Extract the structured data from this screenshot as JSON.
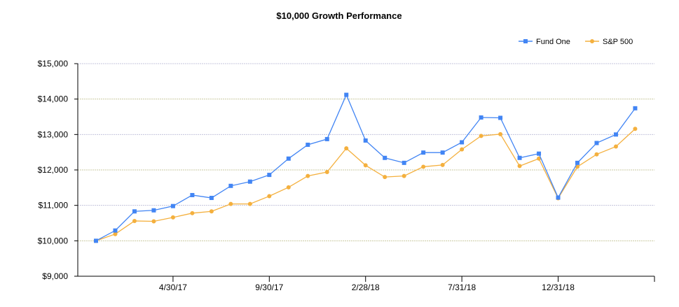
{
  "chart_data": {
    "type": "line",
    "title": "$10,000 Growth Performance",
    "xlabel": "",
    "ylabel": "",
    "ylim": [
      9000,
      15000
    ],
    "yticks": [
      9000,
      10000,
      11000,
      12000,
      13000,
      14000,
      15000
    ],
    "ytick_labels": [
      "$9,000",
      "$10,000",
      "$11,000",
      "$12,000",
      "$13,000",
      "$14,000",
      "$15,000"
    ],
    "xtick_labels": [
      {
        "index": 4,
        "label": "4/30/17"
      },
      {
        "index": 9,
        "label": "9/30/17"
      },
      {
        "index": 14,
        "label": "2/28/18"
      },
      {
        "index": 19,
        "label": "7/31/18"
      },
      {
        "index": 24,
        "label": "12/31/18"
      }
    ],
    "legend_position": "top-right",
    "grid": true,
    "series": [
      {
        "name": "Fund One",
        "color": "#4285f4",
        "marker": "square",
        "values": [
          10000,
          10290,
          10830,
          10860,
          10980,
          11290,
          11210,
          11550,
          11670,
          11860,
          12320,
          12710,
          12870,
          14120,
          12830,
          12340,
          12200,
          12490,
          12490,
          12780,
          13480,
          13470,
          12340,
          12460,
          11220,
          12200,
          12760,
          13000,
          13740
        ]
      },
      {
        "name": "S&P 500",
        "color": "#f4b03e",
        "marker": "circle",
        "values": [
          10000,
          10190,
          10560,
          10550,
          10660,
          10780,
          10830,
          11040,
          11040,
          11260,
          11510,
          11830,
          11940,
          12610,
          12130,
          11800,
          11830,
          12090,
          12140,
          12580,
          12960,
          13010,
          12110,
          12320,
          11200,
          12090,
          12440,
          12660,
          13160
        ]
      }
    ]
  }
}
